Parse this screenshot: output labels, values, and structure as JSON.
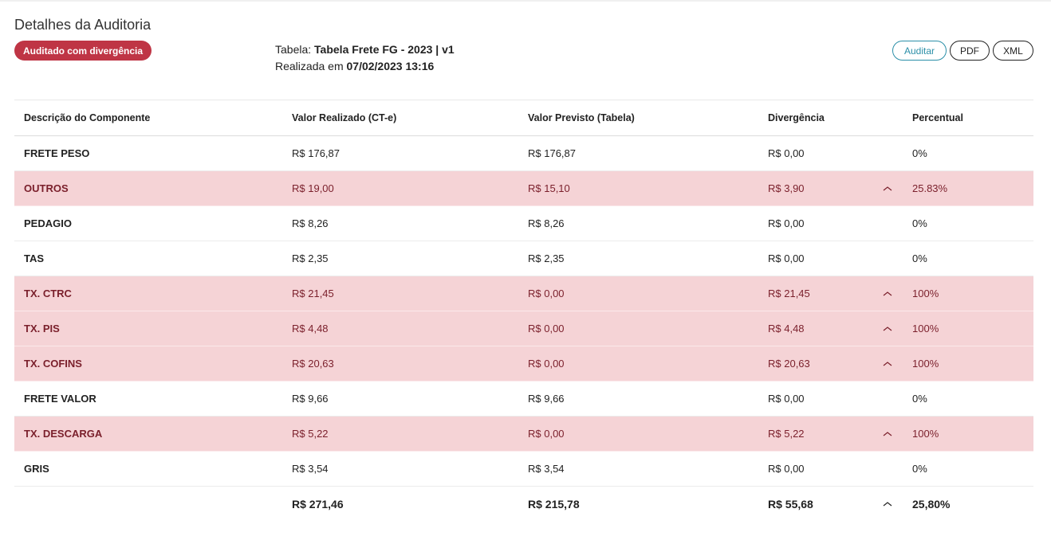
{
  "page": {
    "title": "Detalhes da Auditoria",
    "status_badge": "Auditado com divergência"
  },
  "meta": {
    "tabela_label": "Tabela:",
    "tabela_value": "Tabela Frete FG - 2023 | v1",
    "realizada_label": "Realizada em",
    "realizada_value": "07/02/2023 13:16"
  },
  "actions": {
    "audit": "Auditar",
    "pdf": "PDF",
    "xml": "XML"
  },
  "colors": {
    "badge": "#bf3545",
    "divergence_row": "#f5d3d6",
    "divergence_text": "#7a1f2b",
    "audit_button": "#2b8fa8"
  },
  "table": {
    "headers": [
      "Descrição do Componente",
      "Valor Realizado (CT-e)",
      "Valor Previsto (Tabela)",
      "Divergência",
      "Percentual"
    ],
    "rows": [
      {
        "name": "FRETE PESO",
        "realizado": "R$ 176,87",
        "previsto": "R$ 176,87",
        "divergencia": "R$ 0,00",
        "up": false,
        "percentual": "0%",
        "divergent": false
      },
      {
        "name": "OUTROS",
        "realizado": "R$ 19,00",
        "previsto": "R$ 15,10",
        "divergencia": "R$ 3,90",
        "up": true,
        "percentual": "25.83%",
        "divergent": true
      },
      {
        "name": "PEDAGIO",
        "realizado": "R$ 8,26",
        "previsto": "R$ 8,26",
        "divergencia": "R$ 0,00",
        "up": false,
        "percentual": "0%",
        "divergent": false
      },
      {
        "name": "TAS",
        "realizado": "R$ 2,35",
        "previsto": "R$ 2,35",
        "divergencia": "R$ 0,00",
        "up": false,
        "percentual": "0%",
        "divergent": false
      },
      {
        "name": "TX. CTRC",
        "realizado": "R$ 21,45",
        "previsto": "R$ 0,00",
        "divergencia": "R$ 21,45",
        "up": true,
        "percentual": "100%",
        "divergent": true
      },
      {
        "name": "TX. PIS",
        "realizado": "R$ 4,48",
        "previsto": "R$ 0,00",
        "divergencia": "R$ 4,48",
        "up": true,
        "percentual": "100%",
        "divergent": true
      },
      {
        "name": "TX. COFINS",
        "realizado": "R$ 20,63",
        "previsto": "R$ 0,00",
        "divergencia": "R$ 20,63",
        "up": true,
        "percentual": "100%",
        "divergent": true
      },
      {
        "name": "FRETE VALOR",
        "realizado": "R$ 9,66",
        "previsto": "R$ 9,66",
        "divergencia": "R$ 0,00",
        "up": false,
        "percentual": "0%",
        "divergent": false
      },
      {
        "name": "TX. DESCARGA",
        "realizado": "R$ 5,22",
        "previsto": "R$ 0,00",
        "divergencia": "R$ 5,22",
        "up": true,
        "percentual": "100%",
        "divergent": true
      },
      {
        "name": "GRIS",
        "realizado": "R$ 3,54",
        "previsto": "R$ 3,54",
        "divergencia": "R$ 0,00",
        "up": false,
        "percentual": "0%",
        "divergent": false
      }
    ],
    "total": {
      "realizado": "R$ 271,46",
      "previsto": "R$ 215,78",
      "divergencia": "R$ 55,68",
      "up": true,
      "percentual": "25,80%"
    }
  }
}
